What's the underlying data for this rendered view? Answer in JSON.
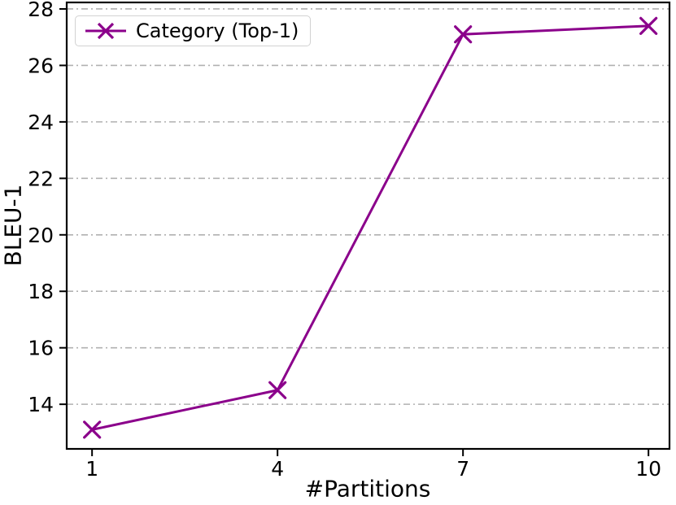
{
  "chart_data": {
    "type": "line",
    "title": "",
    "xlabel": "#Partitions",
    "ylabel": "BLEU-1",
    "x": [
      1,
      4,
      7,
      10
    ],
    "series": [
      {
        "name": "Category (Top-1)",
        "values": [
          13.1,
          14.5,
          27.1,
          27.4
        ],
        "color": "#8B008B",
        "marker": "x",
        "linestyle": "solid"
      }
    ],
    "xticks": [
      "1",
      "4",
      "7",
      "10"
    ],
    "xtick_values": [
      1,
      4,
      7,
      10
    ],
    "yticks": [
      "14",
      "16",
      "18",
      "20",
      "22",
      "24",
      "26",
      "28"
    ],
    "ytick_values": [
      14,
      16,
      18,
      20,
      22,
      24,
      26,
      28
    ],
    "xlim": [
      0.59,
      10.34
    ],
    "ylim": [
      12.42,
      28.23
    ],
    "grid": {
      "axis": "y",
      "style": "dash-dot",
      "color": "#b1b1b1"
    },
    "legend": {
      "position": "upper-left",
      "entries": [
        "Category (Top-1)"
      ]
    }
  },
  "colors": {
    "background": "#ffffff",
    "axis": "#000000",
    "line": "#8B008B",
    "grid": "#b1b1b1"
  }
}
